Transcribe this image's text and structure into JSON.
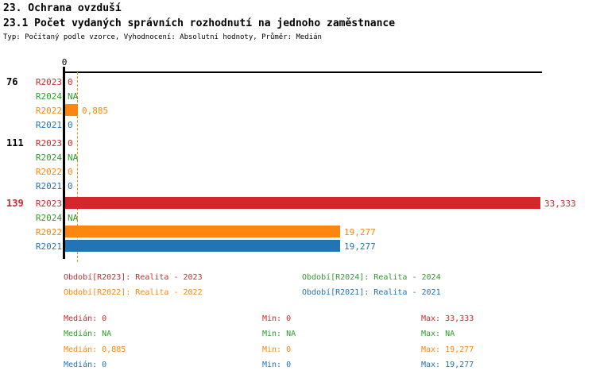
{
  "header": {
    "section_title": "23. Ochrana ovzduší",
    "indicator_title": "23.1 Počet vydaných správních rozhodnutí na jednoho zaměstnance",
    "meta": "Typ: Počítaný podle vzorce, Vyhodnocení: Absolutní hodnoty, Průměr: Medián"
  },
  "colors": {
    "red": "#D2272B",
    "green": "#2E9B2C",
    "orange": "#FC860F",
    "blue": "#2274B5",
    "black": "#000000"
  },
  "chart_data": {
    "type": "bar",
    "orientation": "horizontal",
    "x_axis": {
      "tick_label": "0",
      "x_min": 0,
      "x_max": 33.333
    },
    "median_line": {
      "value": 0.885,
      "color": "orange",
      "style": "dashed"
    },
    "groups": [
      {
        "label": "76",
        "label_color": "black",
        "rows": [
          {
            "series": "R2023",
            "color": "red",
            "value": 0,
            "value_label": "0"
          },
          {
            "series": "R2024",
            "color": "green",
            "value": null,
            "value_label": "NA"
          },
          {
            "series": "R2022",
            "color": "orange",
            "value": 0.885,
            "value_label": "0,885"
          },
          {
            "series": "R2021",
            "color": "blue",
            "value": 0,
            "value_label": "0"
          }
        ]
      },
      {
        "label": "111",
        "label_color": "black",
        "rows": [
          {
            "series": "R2023",
            "color": "red",
            "value": 0,
            "value_label": "0"
          },
          {
            "series": "R2024",
            "color": "green",
            "value": null,
            "value_label": "NA"
          },
          {
            "series": "R2022",
            "color": "orange",
            "value": 0,
            "value_label": "0"
          },
          {
            "series": "R2021",
            "color": "blue",
            "value": 0,
            "value_label": "0"
          }
        ]
      },
      {
        "label": "139",
        "label_color": "red",
        "rows": [
          {
            "series": "R2023",
            "color": "red",
            "value": 33.333,
            "value_label": "33,333"
          },
          {
            "series": "R2024",
            "color": "green",
            "value": null,
            "value_label": "NA"
          },
          {
            "series": "R2022",
            "color": "orange",
            "value": 19.277,
            "value_label": "19,277"
          },
          {
            "series": "R2021",
            "color": "blue",
            "value": 19.277,
            "value_label": "19,277"
          }
        ]
      }
    ]
  },
  "legend": {
    "items": [
      {
        "text": "Období[R2023]: Realita - 2023",
        "color": "red",
        "col": 0,
        "row": 0
      },
      {
        "text": "Období[R2024]: Realita - 2024",
        "color": "green",
        "col": 1,
        "row": 0
      },
      {
        "text": "Období[R2022]: Realita - 2022",
        "color": "orange",
        "col": 0,
        "row": 1
      },
      {
        "text": "Období[R2021]: Realita - 2021",
        "color": "blue",
        "col": 1,
        "row": 1
      }
    ]
  },
  "stats": {
    "labels": {
      "median": "Medián",
      "min": "Min",
      "max": "Max"
    },
    "rows": [
      {
        "series": "R2023",
        "color": "red",
        "median": "0",
        "min": "0",
        "max": "33,333"
      },
      {
        "series": "R2024",
        "color": "green",
        "median": "NA",
        "min": "NA",
        "max": "NA"
      },
      {
        "series": "R2022",
        "color": "orange",
        "median": "0,885",
        "min": "0",
        "max": "19,277"
      },
      {
        "series": "R2021",
        "color": "blue",
        "median": "0",
        "min": "0",
        "max": "19,277"
      }
    ]
  }
}
